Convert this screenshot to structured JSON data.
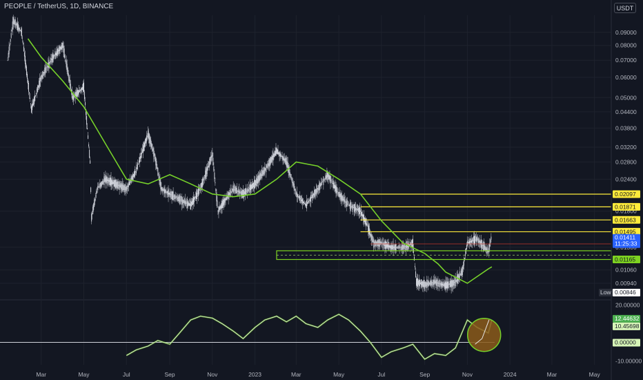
{
  "header": {
    "title": "PEOPLE / TetherUS, 1D, BINANCE",
    "currency": "USDT"
  },
  "colors": {
    "background": "#131722",
    "candle": "#d1d4dc",
    "ma": "#76d12a",
    "level": "#ffeb3b",
    "zone": "#7ed321",
    "price_tag": "#2962ff",
    "osc_circle": "#8b5a1a"
  },
  "chart_data": [
    {
      "type": "candlestick",
      "title": "PEOPLE / TetherUS, 1D, BINANCE",
      "y_scale": "log",
      "ylim": [
        0.0082,
        0.105
      ],
      "y_ticks": [
        "0.09000",
        "0.08000",
        "0.07000",
        "0.06000",
        "0.05000",
        "0.04400",
        "0.03800",
        "0.03200",
        "0.02800",
        "0.02400",
        "0.01800",
        "0.01300",
        "0.01060",
        "0.00940"
      ],
      "x_ticks": [
        "Mar",
        "May",
        "Jul",
        "Sep",
        "Nov",
        "2023",
        "Mar",
        "May",
        "Jul",
        "Sep",
        "Nov",
        "2024",
        "Mar",
        "May"
      ],
      "close_series": {
        "x": [
          "2022-01-12",
          "2022-01-20",
          "2022-02-01",
          "2022-02-15",
          "2022-03-01",
          "2022-03-15",
          "2022-04-01",
          "2022-04-15",
          "2022-05-01",
          "2022-05-10",
          "2022-05-12",
          "2022-05-20",
          "2022-06-01",
          "2022-06-15",
          "2022-07-01",
          "2022-07-15",
          "2022-08-01",
          "2022-08-10",
          "2022-08-20",
          "2022-09-01",
          "2022-09-15",
          "2022-10-01",
          "2022-10-15",
          "2022-11-01",
          "2022-11-09",
          "2022-11-20",
          "2022-12-01",
          "2022-12-15",
          "2023-01-01",
          "2023-01-15",
          "2023-02-01",
          "2023-02-15",
          "2023-03-01",
          "2023-03-15",
          "2023-04-01",
          "2023-04-15",
          "2023-05-01",
          "2023-05-15",
          "2023-06-01",
          "2023-06-10",
          "2023-06-20",
          "2023-07-01",
          "2023-07-15",
          "2023-08-01",
          "2023-08-15",
          "2023-08-20",
          "2023-09-01",
          "2023-09-15",
          "2023-10-01",
          "2023-10-15",
          "2023-10-25",
          "2023-11-01",
          "2023-11-15",
          "2023-12-01",
          "2023-12-05"
        ],
        "y": [
          0.07,
          0.1,
          0.09,
          0.045,
          0.06,
          0.07,
          0.08,
          0.05,
          0.055,
          0.028,
          0.017,
          0.022,
          0.024,
          0.023,
          0.022,
          0.026,
          0.036,
          0.03,
          0.022,
          0.021,
          0.02,
          0.019,
          0.022,
          0.03,
          0.018,
          0.02,
          0.022,
          0.021,
          0.023,
          0.026,
          0.031,
          0.028,
          0.021,
          0.019,
          0.022,
          0.025,
          0.021,
          0.019,
          0.018,
          0.016,
          0.0135,
          0.0135,
          0.013,
          0.013,
          0.0135,
          0.0095,
          0.0093,
          0.0095,
          0.0092,
          0.0095,
          0.0105,
          0.0135,
          0.014,
          0.0125,
          0.0141
        ]
      },
      "moving_average": {
        "x": [
          "2022-02-10",
          "2022-03-01",
          "2022-04-01",
          "2022-05-01",
          "2022-06-01",
          "2022-07-01",
          "2022-08-01",
          "2022-09-01",
          "2022-10-01",
          "2022-11-01",
          "2022-12-01",
          "2023-01-01",
          "2023-02-01",
          "2023-03-01",
          "2023-04-01",
          "2023-05-01",
          "2023-06-01",
          "2023-07-01",
          "2023-08-01",
          "2023-09-01",
          "2023-09-20",
          "2023-10-01",
          "2023-11-01",
          "2023-12-01",
          "2023-12-06"
        ],
        "y": [
          0.085,
          0.072,
          0.058,
          0.046,
          0.033,
          0.024,
          0.023,
          0.025,
          0.023,
          0.021,
          0.0205,
          0.021,
          0.024,
          0.028,
          0.027,
          0.024,
          0.021,
          0.0165,
          0.0135,
          0.0123,
          0.0112,
          0.0104,
          0.0094,
          0.0107,
          0.0109
        ]
      },
      "levels": [
        {
          "label": "0.02097",
          "value": 0.02097,
          "from": "2023-06-01"
        },
        {
          "label": "0.01871",
          "value": 0.01871,
          "from": "2023-06-01"
        },
        {
          "label": "0.01663",
          "value": 0.01663,
          "from": "2023-06-01"
        },
        {
          "label": "0.01495",
          "value": 0.01495,
          "from": "2023-06-01"
        }
      ],
      "support_zone": {
        "label": "0.01165",
        "low": 0.01165,
        "high": 0.0126,
        "from": "2023-02-01"
      },
      "current_price": {
        "label": "0.01411",
        "countdown": "11:25:33",
        "value": 0.01411
      },
      "low": {
        "label": "Low",
        "value": "0.00846"
      }
    },
    {
      "type": "line",
      "y_ticks": [
        "20.00000",
        "-10.00000"
      ],
      "ylim": [
        -12,
        22
      ],
      "series": [
        {
          "values_label_1": "12.44632",
          "values_label_2": "10.45698",
          "x": [
            "2022-07-01",
            "2022-07-15",
            "2022-08-01",
            "2022-08-15",
            "2022-09-01",
            "2022-09-15",
            "2022-10-01",
            "2022-10-15",
            "2022-11-01",
            "2022-11-15",
            "2022-12-01",
            "2022-12-15",
            "2023-01-01",
            "2023-01-15",
            "2023-02-01",
            "2023-02-15",
            "2023-03-01",
            "2023-03-15",
            "2023-04-01",
            "2023-04-15",
            "2023-05-01",
            "2023-05-15",
            "2023-06-01",
            "2023-06-15",
            "2023-07-01",
            "2023-07-15",
            "2023-08-01",
            "2023-08-15",
            "2023-09-01",
            "2023-09-15",
            "2023-10-01",
            "2023-10-15",
            "2023-11-01",
            "2023-11-15",
            "2023-12-01",
            "2023-12-06"
          ],
          "y": [
            -7,
            -4,
            -2,
            1,
            -1,
            5,
            12,
            14,
            13,
            10,
            6,
            2,
            8,
            12,
            14,
            11,
            14,
            10,
            8,
            12,
            15,
            12,
            6,
            0,
            -8,
            -5,
            -3,
            -1,
            -9,
            -6,
            -7,
            -3,
            12,
            8,
            5,
            12
          ]
        }
      ],
      "zero_line": "0.00000"
    }
  ]
}
